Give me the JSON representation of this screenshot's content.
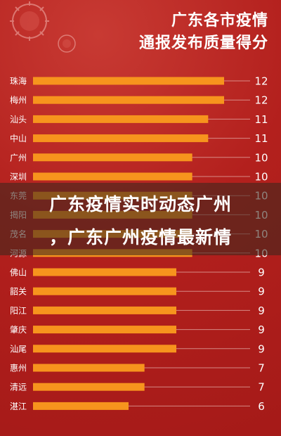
{
  "header": {
    "title_line1": "广东各市疫情",
    "title_line2": "通报发布质量得分"
  },
  "overlay": {
    "line1": "广东疫情实时动态广州",
    "line2": "，广东广州疫情最新情"
  },
  "colors": {
    "background": "#b3201d",
    "bar": "#f7941d",
    "text": "#ffffff",
    "gridline": "#e8b7b2"
  },
  "chart_data": {
    "type": "bar",
    "orientation": "horizontal",
    "title": "广东各市疫情通报发布质量得分",
    "categories": [
      "珠海",
      "梅州",
      "汕头",
      "中山",
      "广州",
      "深圳",
      "东莞",
      "揭阳",
      "茂名",
      "河源",
      "佛山",
      "韶关",
      "阳江",
      "肇庆",
      "汕尾",
      "惠州",
      "清远",
      "湛江"
    ],
    "values": [
      12,
      12,
      11,
      11,
      10,
      10,
      10,
      10,
      10,
      10,
      9,
      9,
      9,
      9,
      9,
      7,
      7,
      6
    ],
    "xlim": [
      0,
      12
    ],
    "grid": false,
    "legend": "none"
  }
}
